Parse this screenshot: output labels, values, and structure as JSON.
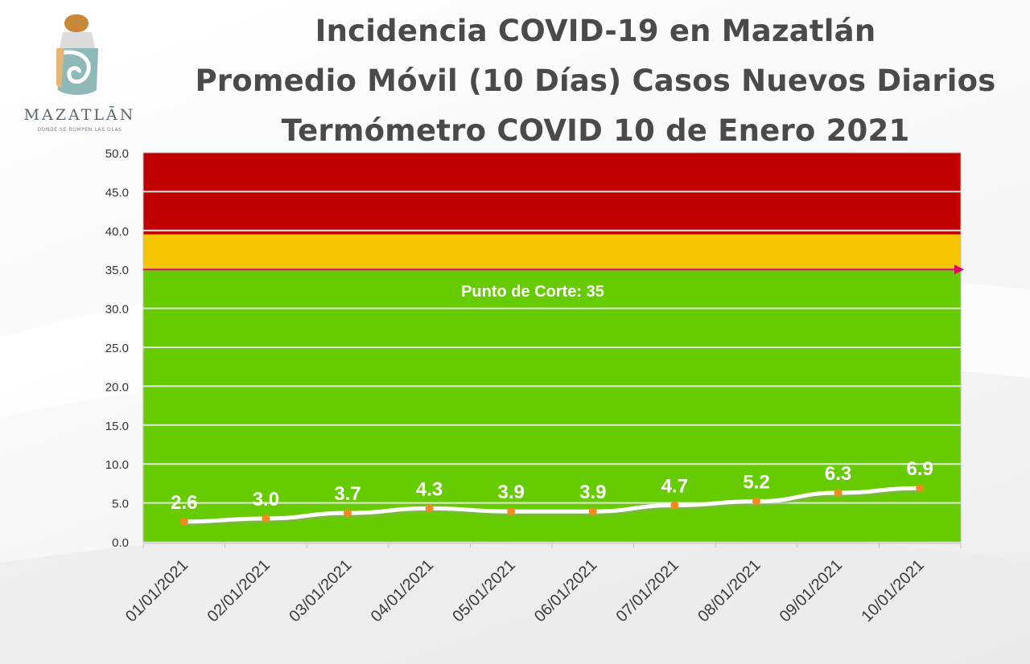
{
  "logo": {
    "name": "MAZATLĀN",
    "tagline": "DONDE SE ROMPEN LAS OLAS"
  },
  "header": {
    "title_line1": "Incidencia COVID-19 en Mazatlán",
    "title_line2": "Promedio Móvil (10 Días) Casos Nuevos Diarios",
    "title_line3": "Termómetro COVID 10 de Enero 2021"
  },
  "chart_data": {
    "type": "line",
    "categories": [
      "01/01/2021",
      "02/01/2021",
      "03/01/2021",
      "04/01/2021",
      "05/01/2021",
      "06/01/2021",
      "07/01/2021",
      "08/01/2021",
      "09/01/2021",
      "10/01/2021"
    ],
    "values": [
      2.6,
      3.0,
      3.7,
      4.3,
      3.9,
      3.9,
      4.7,
      5.2,
      6.3,
      6.9
    ],
    "data_labels": [
      "2.6",
      "3.0",
      "3.7",
      "4.3",
      "3.9",
      "3.9",
      "4.7",
      "5.2",
      "6.3",
      "6.9"
    ],
    "ylim": [
      0,
      50
    ],
    "y_ticks": [
      "0.0",
      "5.0",
      "10.0",
      "15.0",
      "20.0",
      "25.0",
      "30.0",
      "35.0",
      "40.0",
      "45.0",
      "50.0"
    ],
    "y_tick_values": [
      0,
      5,
      10,
      15,
      20,
      25,
      30,
      35,
      40,
      45,
      50
    ],
    "grid": true,
    "zones": [
      {
        "from": 0,
        "to": 35,
        "color": "#66cc00"
      },
      {
        "from": 35,
        "to": 39.5,
        "color": "#f7c600"
      },
      {
        "from": 39.5,
        "to": 50,
        "color": "#c00000"
      }
    ],
    "threshold": {
      "value": 35,
      "label": "Punto de Corte: 35",
      "color": "#e4006a"
    },
    "line_color": "#ffffff",
    "marker_color": "#f08c1e"
  }
}
